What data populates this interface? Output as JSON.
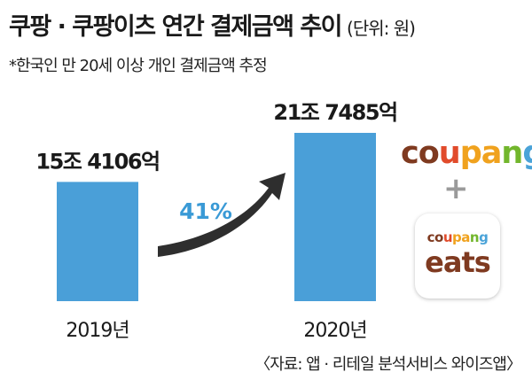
{
  "header": {
    "title": "쿠팡 · 쿠팡이츠 연간 결제금액 추이",
    "unit": "(단위: 원)",
    "note": "*한국인 만 20세 이상 개인 결제금액 추정"
  },
  "footer": {
    "source": "〈자료: 앱 · 리테일 분석서비스 와이즈앱〉"
  },
  "logos": {
    "coupang": "coupang",
    "eats_top": "coupang",
    "eats_bottom": "eats",
    "plus": "+"
  },
  "colors": {
    "bar": "#4a9fd8",
    "growth_text": "#3a9ad6",
    "arrow": "#2e2e2e"
  },
  "chart_data": {
    "type": "bar",
    "categories": [
      "2019년",
      "2020년"
    ],
    "values": [
      154106,
      217485
    ],
    "value_units": "억 원",
    "data_labels": [
      "15조 4106억",
      "21조 7485억"
    ],
    "annotations": [
      {
        "text": "41%",
        "type": "growth-arrow",
        "from": "2019년",
        "to": "2020년"
      }
    ],
    "grid": false,
    "legend": "none"
  }
}
